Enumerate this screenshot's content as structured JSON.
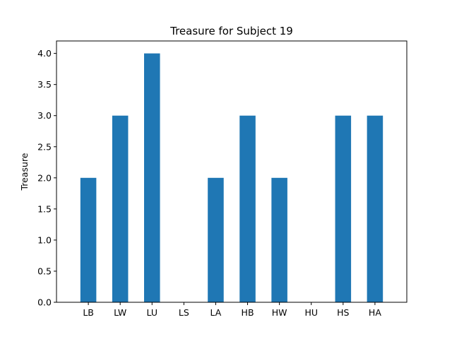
{
  "chart_data": {
    "type": "bar",
    "title": "Treasure for Subject 19",
    "xlabel": "",
    "ylabel": "Treasure",
    "categories": [
      "LB",
      "LW",
      "LU",
      "LS",
      "LA",
      "HB",
      "HW",
      "HU",
      "HS",
      "HA"
    ],
    "values": [
      2.0,
      3.0,
      4.0,
      0.0,
      2.0,
      3.0,
      2.0,
      0.0,
      3.0,
      3.0
    ],
    "ylim": [
      0,
      4.2
    ],
    "yticks": [
      "0.0",
      "0.5",
      "1.0",
      "1.5",
      "2.0",
      "2.5",
      "3.0",
      "3.5",
      "4.0"
    ],
    "bar_color": "#1f77b4",
    "grid": false,
    "legend": "none"
  }
}
